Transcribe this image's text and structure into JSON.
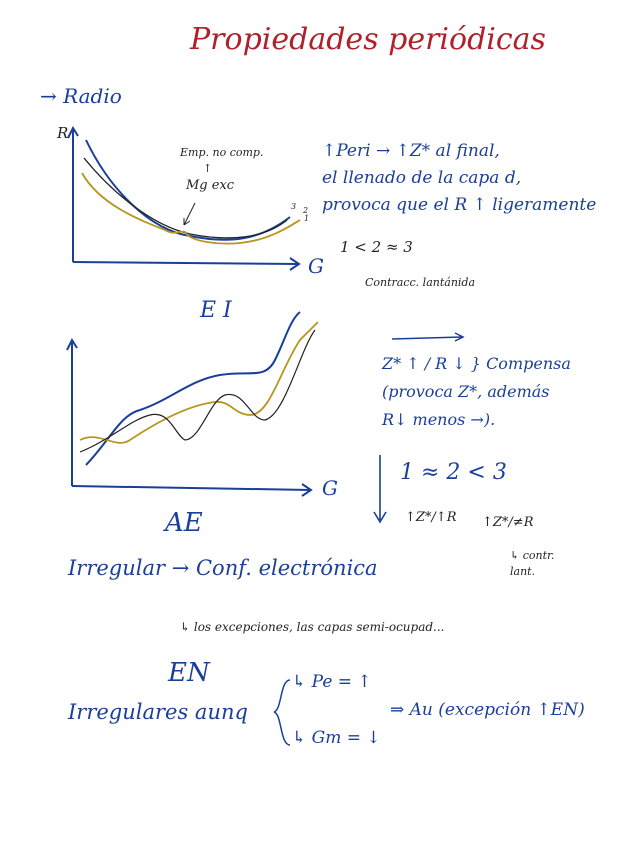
{
  "title": "Propiedades periódicas",
  "colors": {
    "title": "#b0202a",
    "ink": "#1a3f9a",
    "pencil": "#222222",
    "gold": "#b8961e"
  },
  "radio": {
    "heading": "→ Radio",
    "y_axis": "R",
    "x_axis": "G",
    "note_emp": "Emp. no comp.",
    "note_up": "↑",
    "note_mg": "Mg exc",
    "line_labels": [
      "3",
      "2",
      "1"
    ],
    "explanation": [
      "↑Peri → ↑Z* al final,",
      "el llenado de la capa d,",
      "provoca que el R ↑ ligeramente"
    ],
    "order": "1 < 2 ≈ 3",
    "order_note": "Contracc. lantánida"
  },
  "ei": {
    "heading": "E I",
    "x_axis": "G",
    "explanation": [
      "Z* ↑ / R ↓ } Compensa",
      "(provoca Z*, además",
      "R↓ menos →)."
    ],
    "order": "1 ≈ 2 < 3",
    "sub_left": "↑Z*/↑R",
    "sub_right": "↑Z*/≠R",
    "sub_note": [
      "↳ contr.",
      "lant."
    ]
  },
  "ae": {
    "heading": "AE",
    "line": "Irregular → Conf. electrónica",
    "note": "↳ los excepciones, las capas semi-ocupad..."
  },
  "en": {
    "heading": "EN",
    "line": "Irregulares aunq",
    "pe": "↳ Pe = ↑",
    "gm": "↳ Gm = ↓",
    "conclusion": "⇒ Au (excepción ↑EN)"
  }
}
